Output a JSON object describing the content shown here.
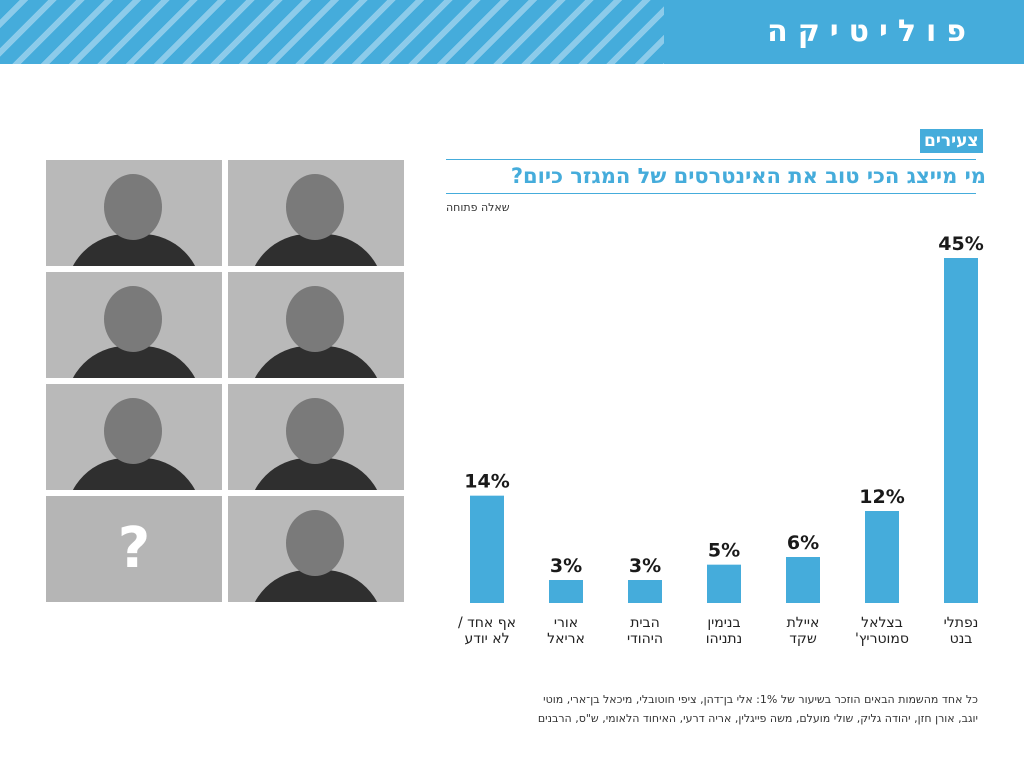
{
  "header": {
    "title": "פוליטיקה"
  },
  "badge": "צעירים",
  "question": "מי מייצג הכי טוב את האינטרסים של המגזר כיום?",
  "subquestion": "שאלה פתוחה",
  "photos": [
    {
      "name": "photo-1",
      "unknown": false
    },
    {
      "name": "photo-2",
      "unknown": false
    },
    {
      "name": "photo-3",
      "unknown": false
    },
    {
      "name": "photo-4",
      "unknown": false
    },
    {
      "name": "photo-5",
      "unknown": false
    },
    {
      "name": "photo-6",
      "unknown": false
    },
    {
      "name": "photo-unknown",
      "unknown": true,
      "label": "?"
    },
    {
      "name": "photo-8",
      "unknown": false
    }
  ],
  "colors": {
    "accent": "#45acdb",
    "stripe": "#8ccbea",
    "bar": "#45acdb",
    "photo_gray": "#b5b5b5"
  },
  "chart_data": {
    "type": "bar",
    "categories": [
      [
        "אף אחד /",
        "לא יודע"
      ],
      [
        "אורי",
        "אריאל"
      ],
      [
        "הבית",
        "היהודי"
      ],
      [
        "בנימין",
        "נתניהו"
      ],
      [
        "איילת",
        "שקד"
      ],
      [
        "בצלאל",
        "סמוטריץ'"
      ],
      [
        "נפתלי",
        "בנט"
      ]
    ],
    "values": [
      14,
      3,
      3,
      5,
      6,
      12,
      45
    ],
    "value_labels": [
      "14%",
      "3%",
      "3%",
      "5%",
      "6%",
      "12%",
      "45%"
    ],
    "title": "מי מייצג הכי טוב את האינטרסים של המגזר כיום?",
    "ylim": [
      0,
      45
    ],
    "grid": false
  },
  "footnote": {
    "line1": "כל אחד מהשמות הבאים הוזכר בשיעור של 1%: אלי בן־דהן, ציפי חוטובלי, מיכאל בן־ארי, מוטי",
    "line2": "יוגב, אורן חזן, יהודה גליק, שולי מועלם, משה פייגלין, אריה דרעי, האיחוד הלאומי, ש\"ס, הרבנים"
  }
}
